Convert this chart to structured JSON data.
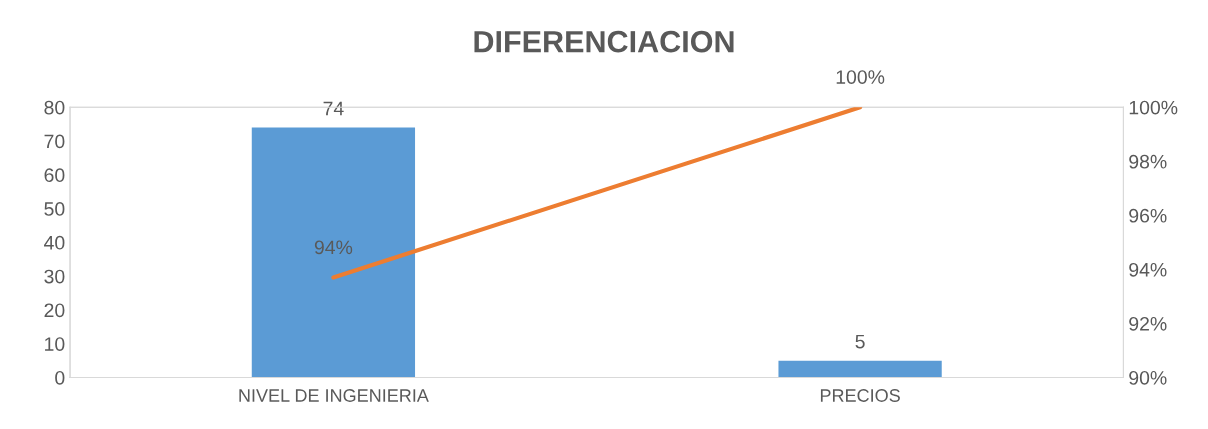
{
  "chart_data": {
    "type": "bar",
    "title": "DIFERENCIACION",
    "categories": [
      "NIVEL DE INGENIERIA",
      "PRECIOS"
    ],
    "series": [
      {
        "color": "#5b9bd5",
        "values": [
          74,
          5
        ],
        "value_labels": [
          "74",
          "5"
        ]
      },
      {
        "type": "line",
        "axis": "y2",
        "color": "#ed7d31",
        "values": [
          93.7,
          100
        ],
        "value_labels": [
          "94%",
          "100%"
        ]
      }
    ],
    "ylim": [
      0,
      80
    ],
    "yticks": [
      0,
      10,
      20,
      30,
      40,
      50,
      60,
      70,
      80
    ],
    "y2lim": [
      90,
      100
    ],
    "y2ticks": [
      {
        "value": 90,
        "label": "90%"
      },
      {
        "value": 92,
        "label": "92%"
      },
      {
        "value": 94,
        "label": "94%"
      },
      {
        "value": 96,
        "label": "96%"
      },
      {
        "value": 98,
        "label": "98%"
      },
      {
        "value": 100,
        "label": "100%"
      }
    ],
    "grid": false,
    "legend": false,
    "marker": "none"
  }
}
